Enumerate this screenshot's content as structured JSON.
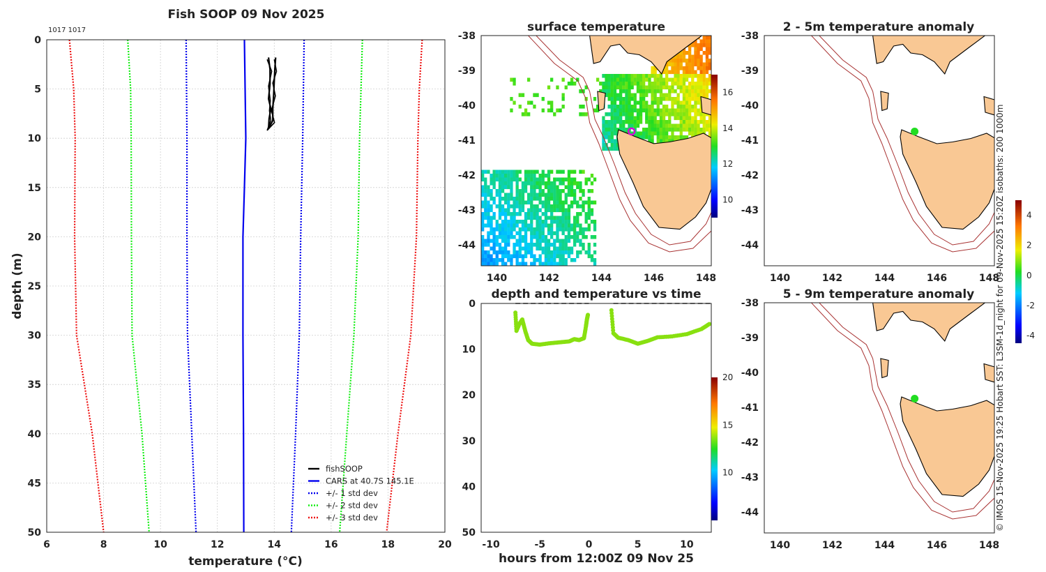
{
  "chart_data": [
    {
      "type": "line",
      "title": "Fish SOOP 09 Nov 2025",
      "id_label": "1017 1017",
      "xlabel": "temperature (°C)",
      "ylabel": "depth (m)",
      "xlim": [
        6,
        20
      ],
      "ylim": [
        50,
        0
      ],
      "xticks": [
        6,
        8,
        10,
        12,
        14,
        16,
        18,
        20
      ],
      "yticks": [
        0,
        5,
        10,
        15,
        20,
        25,
        30,
        35,
        40,
        45,
        50
      ],
      "grid": true,
      "legend_position": "bottom-right",
      "legend": [
        "fishSOOP",
        "CARS at 40.7S 145.1E",
        "+/- 1 std dev",
        "+/- 2 std dev",
        "+/- 3 std dev"
      ],
      "cars_mean": {
        "depth": [
          0,
          10,
          15,
          20,
          30,
          40,
          50
        ],
        "temp": [
          12.95,
          13.0,
          12.95,
          12.9,
          12.9,
          12.92,
          12.93
        ]
      },
      "std1": {
        "depth": [
          0,
          10,
          20,
          30,
          40,
          50
        ],
        "low": [
          10.9,
          10.93,
          10.93,
          10.95,
          11.1,
          11.25
        ],
        "high": [
          15.05,
          15.0,
          14.93,
          14.88,
          14.75,
          14.6
        ]
      },
      "std2": {
        "depth": [
          0,
          5,
          10,
          20,
          30,
          40,
          50
        ],
        "low": [
          8.85,
          8.95,
          8.97,
          8.98,
          9.0,
          9.35,
          9.6
        ],
        "high": [
          17.1,
          17.05,
          17.0,
          16.95,
          16.8,
          16.55,
          16.3
        ]
      },
      "std3": {
        "depth": [
          0,
          5,
          10,
          20,
          30,
          40,
          50
        ],
        "low": [
          6.8,
          6.95,
          7.0,
          6.98,
          7.05,
          7.6,
          8.0
        ],
        "high": [
          19.2,
          19.1,
          19.05,
          19.0,
          18.8,
          18.35,
          17.95
        ]
      },
      "fish_profile": {
        "depth": [
          1.8,
          3.0,
          4.5,
          6.0,
          7.0,
          8.0,
          9.0,
          8.2,
          7.0,
          5.5,
          4.2,
          3.0,
          1.8
        ],
        "temp": [
          13.8,
          13.85,
          13.85,
          13.8,
          13.88,
          13.82,
          13.8,
          13.95,
          13.95,
          13.98,
          14.0,
          14.02,
          14.05
        ]
      }
    },
    {
      "type": "heatmap",
      "title": "surface temperature",
      "xticks": [
        140,
        142,
        144,
        146,
        148
      ],
      "yticks": [
        -38,
        -39,
        -40,
        -41,
        -42,
        -43,
        -44
      ],
      "colorbar_ticks": [
        "10",
        "12",
        "14",
        "16"
      ],
      "colorbar_range": [
        9,
        17
      ]
    },
    {
      "type": "scatter",
      "title": "depth and temperature vs time",
      "xlabel": "hours from 12:00Z 09 Nov 25",
      "xlim": [
        -11,
        12.5
      ],
      "ylim": [
        50,
        0
      ],
      "xticks": [
        "-10",
        "-5",
        "0",
        "5",
        "10"
      ],
      "yticks": [
        "0",
        "10",
        "20",
        "30",
        "40",
        "50"
      ],
      "colorbar_ticks": [
        "10",
        "15",
        "20"
      ],
      "colorbar_range": [
        5,
        20
      ],
      "gaps_dashed": [
        [
          -7.5,
          0
        ],
        [
          2.5,
          12.5
        ]
      ],
      "segment1": {
        "hours": [
          -7.5,
          -7.4,
          -7.1,
          -6.8,
          -6.5,
          -6.2,
          -5.8,
          -5.0,
          -4.0,
          -3.0,
          -2.0,
          -1.5,
          -1.0,
          -0.5,
          -0.3,
          -0.2,
          -0.1
        ],
        "depth": [
          2.0,
          6.0,
          4.5,
          3.5,
          6.0,
          8.0,
          8.8,
          9.0,
          8.7,
          8.5,
          8.3,
          7.8,
          8.0,
          7.6,
          5.0,
          3.5,
          2.5
        ]
      },
      "segment2": {
        "hours": [
          2.3,
          2.5,
          3.0,
          4.0,
          5.0,
          6.0,
          7.0,
          8.5,
          10.0,
          11.5,
          12.3
        ],
        "depth": [
          1.5,
          6.5,
          7.5,
          8.0,
          8.8,
          8.2,
          7.4,
          7.2,
          6.7,
          5.6,
          4.5
        ]
      }
    },
    {
      "type": "heatmap",
      "title": "2 - 5m temperature anomaly",
      "xticks": [
        140,
        142,
        144,
        146,
        148
      ],
      "yticks": [
        -38,
        -39,
        -40,
        -41,
        -42,
        -43,
        -44
      ],
      "marker": {
        "lon": 145.15,
        "lat": -40.75,
        "anomaly": 0
      },
      "colorbar_ticks": [
        "-4",
        "-2",
        "0",
        "2",
        "4"
      ],
      "colorbar_range": [
        -4.5,
        5
      ]
    },
    {
      "type": "heatmap",
      "title": "5 - 9m temperature anomaly",
      "xticks": [
        140,
        142,
        144,
        146,
        148
      ],
      "yticks": [
        -38,
        -39,
        -40,
        -41,
        -42,
        -43,
        -44
      ],
      "marker": {
        "lon": 145.15,
        "lat": -40.75,
        "anomaly": 0
      }
    }
  ],
  "credit": "© IMOS 15-Nov-2025 19:25 Hobart SST: L3SM-1d_night for 09-Nov-2025 15:20Z isobaths: 200  1000m",
  "colors": {
    "land": "#f9c894",
    "coast": "#000000",
    "isobath": "#a83232",
    "fish": "#000000",
    "cars": "#0000ee",
    "std1": "#0000ee",
    "std2": "#11ee11",
    "std3": "#ee1111",
    "track": "#88e010",
    "marker_ring": "#d010d0"
  }
}
